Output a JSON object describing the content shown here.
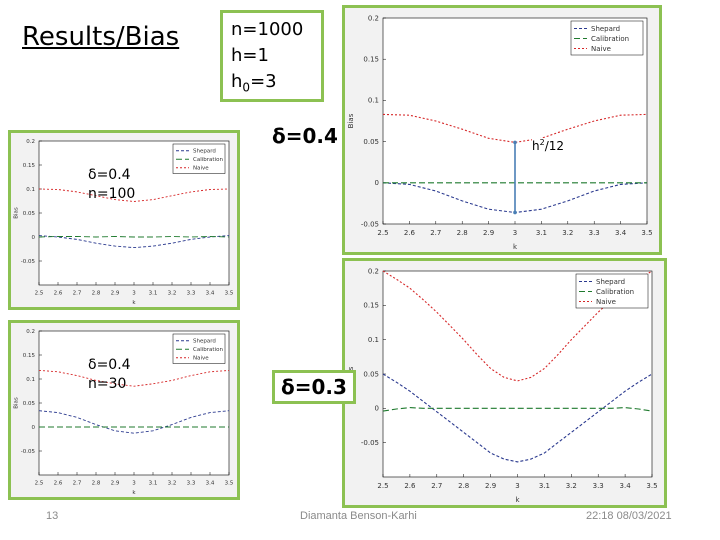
{
  "slide": {
    "title": "Results/Bias",
    "params": {
      "n": "n=1000",
      "h": "h=1",
      "h0_prefix": "h",
      "h0_sub": "0",
      "h0_suffix": "=3"
    },
    "delta_main": "δ=0.4",
    "delta_bottom": "δ=0.3",
    "small1": {
      "delta": "δ=0.4",
      "n": "n=100"
    },
    "small2": {
      "delta": "δ=0.4",
      "n": "n=30"
    },
    "annotation": {
      "base": "h",
      "sup": "2",
      "rest": "/12"
    },
    "footer": {
      "page": "13",
      "author": "Diamanta Benson-Karhi",
      "datetime": "22:18 08/03/2021"
    }
  },
  "colors": {
    "shepard": "#2b3a8f",
    "calibration": "#1f7a2e",
    "naive": "#d62728",
    "frame": "#8cc152",
    "arrow": "#4a7fb5"
  },
  "chart_data": [
    {
      "type": "line",
      "ylabel": "Bias",
      "xlabel": "k",
      "xlim": [
        2.5,
        3.5
      ],
      "ylim": [
        -0.05,
        0.2
      ],
      "xticks": [
        "2.5",
        "2.6",
        "2.7",
        "2.8",
        "2.9",
        "3",
        "3.1",
        "3.2",
        "3.3",
        "3.4",
        "3.5"
      ],
      "yticks": [
        "-0.05",
        "0",
        "0.05",
        "0.1",
        "0.15",
        "0.2"
      ],
      "legend": [
        "Shepard",
        "Calibration",
        "Naive"
      ],
      "legend_position": "top-right",
      "series": [
        {
          "name": "Shepard",
          "x": [
            2.5,
            2.6,
            2.7,
            2.8,
            2.9,
            3.0,
            3.1,
            3.2,
            3.3,
            3.4,
            3.5
          ],
          "values": [
            0.0,
            -0.002,
            -0.01,
            -0.022,
            -0.032,
            -0.036,
            -0.032,
            -0.022,
            -0.01,
            -0.002,
            0.0
          ]
        },
        {
          "name": "Calibration",
          "x": [
            2.5,
            2.6,
            2.7,
            2.8,
            2.9,
            3.0,
            3.1,
            3.2,
            3.3,
            3.4,
            3.5
          ],
          "values": [
            0.0,
            0.0,
            0.0,
            0.0,
            0.0,
            0.0,
            0.0,
            0.0,
            0.0,
            0.0,
            0.0
          ]
        },
        {
          "name": "Naive",
          "x": [
            2.5,
            2.6,
            2.7,
            2.8,
            2.9,
            3.0,
            3.1,
            3.2,
            3.3,
            3.4,
            3.5
          ],
          "values": [
            0.083,
            0.082,
            0.075,
            0.065,
            0.054,
            0.049,
            0.054,
            0.065,
            0.075,
            0.082,
            0.083
          ]
        }
      ]
    },
    {
      "type": "line",
      "ylabel": "Bias",
      "xlabel": "k",
      "xlim": [
        2.5,
        3.5
      ],
      "ylim": [
        -0.1,
        0.2
      ],
      "xticks": [
        "2.5",
        "2.6",
        "2.7",
        "2.8",
        "2.9",
        "3",
        "3.1",
        "3.2",
        "3.3",
        "3.4",
        "3.5"
      ],
      "yticks": [
        "-0.05",
        "0",
        "0.05",
        "0.1",
        "0.15",
        "0.2"
      ],
      "legend": [
        "Shepard",
        "Calibration",
        "Naive"
      ],
      "legend_position": "top-right",
      "series": [
        {
          "name": "Shepard",
          "x": [
            2.5,
            2.6,
            2.7,
            2.8,
            2.9,
            3.0,
            3.1,
            3.2,
            3.3,
            3.4,
            3.5
          ],
          "values": [
            0.003,
            0.0,
            -0.005,
            -0.013,
            -0.019,
            -0.022,
            -0.019,
            -0.013,
            -0.005,
            0.0,
            0.003
          ]
        },
        {
          "name": "Calibration",
          "x": [
            2.5,
            2.6,
            2.7,
            2.8,
            2.9,
            3.0,
            3.1,
            3.2,
            3.3,
            3.4,
            3.5
          ],
          "values": [
            0.0,
            0.001,
            0.001,
            0.0,
            0.001,
            0.0,
            0.0,
            0.001,
            0.0,
            0.001,
            0.0
          ]
        },
        {
          "name": "Naive",
          "x": [
            2.5,
            2.6,
            2.7,
            2.8,
            2.9,
            3.0,
            3.1,
            3.2,
            3.3,
            3.4,
            3.5
          ],
          "values": [
            0.1,
            0.099,
            0.094,
            0.086,
            0.078,
            0.074,
            0.078,
            0.086,
            0.094,
            0.099,
            0.1
          ]
        }
      ]
    },
    {
      "type": "line",
      "ylabel": "Bias",
      "xlabel": "k",
      "xlim": [
        2.5,
        3.5
      ],
      "ylim": [
        -0.1,
        0.2
      ],
      "xticks": [
        "2.5",
        "2.6",
        "2.7",
        "2.8",
        "2.9",
        "3",
        "3.1",
        "3.2",
        "3.3",
        "3.4",
        "3.5"
      ],
      "yticks": [
        "-0.05",
        "0",
        "0.05",
        "0.1",
        "0.15",
        "0.2"
      ],
      "legend": [
        "Shepard",
        "Calibration",
        "Naive"
      ],
      "legend_position": "top-right",
      "series": [
        {
          "name": "Shepard",
          "x": [
            2.5,
            2.6,
            2.7,
            2.8,
            2.9,
            3.0,
            3.1,
            3.2,
            3.3,
            3.4,
            3.5
          ],
          "values": [
            0.034,
            0.03,
            0.02,
            0.005,
            -0.008,
            -0.013,
            -0.008,
            0.005,
            0.02,
            0.03,
            0.034
          ]
        },
        {
          "name": "Calibration",
          "x": [
            2.5,
            2.6,
            2.7,
            2.8,
            2.9,
            3.0,
            3.1,
            3.2,
            3.3,
            3.4,
            3.5
          ],
          "values": [
            0.0,
            0.0,
            0.0,
            0.0,
            0.0,
            0.0,
            0.0,
            0.0,
            0.0,
            0.0,
            0.0
          ]
        },
        {
          "name": "Naive",
          "x": [
            2.5,
            2.6,
            2.7,
            2.8,
            2.9,
            3.0,
            3.1,
            3.2,
            3.3,
            3.4,
            3.5
          ],
          "values": [
            0.118,
            0.115,
            0.107,
            0.097,
            0.09,
            0.085,
            0.09,
            0.097,
            0.107,
            0.115,
            0.118
          ]
        }
      ]
    },
    {
      "type": "line",
      "ylabel": "Bias",
      "xlabel": "k",
      "xlim": [
        2.5,
        3.5
      ],
      "ylim": [
        -0.1,
        0.2
      ],
      "xticks": [
        "2.5",
        "2.6",
        "2.7",
        "2.8",
        "2.9",
        "3",
        "3.1",
        "3.2",
        "3.3",
        "3.4",
        "3.5"
      ],
      "yticks": [
        "-0.05",
        "0",
        "0.05",
        "0.1",
        "0.15",
        "0.2"
      ],
      "legend": [
        "Shepard",
        "Calibration",
        "Naive"
      ],
      "legend_position": "top-right",
      "series": [
        {
          "name": "Shepard",
          "x": [
            2.5,
            2.55,
            2.6,
            2.65,
            2.7,
            2.75,
            2.8,
            2.85,
            2.9,
            2.95,
            3.0,
            3.05,
            3.1,
            3.15,
            3.2,
            3.25,
            3.3,
            3.35,
            3.4,
            3.45,
            3.5
          ],
          "values": [
            0.05,
            0.038,
            0.025,
            0.01,
            -0.005,
            -0.02,
            -0.035,
            -0.05,
            -0.065,
            -0.074,
            -0.078,
            -0.074,
            -0.065,
            -0.05,
            -0.035,
            -0.02,
            -0.005,
            0.01,
            0.025,
            0.038,
            0.05
          ]
        },
        {
          "name": "Calibration",
          "x": [
            2.5,
            2.55,
            2.6,
            2.65,
            2.7,
            2.75,
            2.8,
            2.85,
            2.9,
            2.95,
            3.0,
            3.05,
            3.1,
            3.15,
            3.2,
            3.25,
            3.3,
            3.35,
            3.4,
            3.45,
            3.5
          ],
          "values": [
            -0.004,
            -0.001,
            0.001,
            0.0,
            0.0,
            0.0,
            0.0,
            0.0,
            0.0,
            0.0,
            0.0,
            0.0,
            0.0,
            0.0,
            0.0,
            0.0,
            0.0,
            0.0,
            0.001,
            -0.001,
            -0.004
          ]
        },
        {
          "name": "Naive",
          "x": [
            2.5,
            2.55,
            2.6,
            2.65,
            2.7,
            2.75,
            2.8,
            2.85,
            2.9,
            2.95,
            3.0,
            3.05,
            3.1,
            3.15,
            3.2,
            3.25,
            3.3,
            3.35,
            3.4,
            3.45,
            3.5
          ],
          "values": [
            0.2,
            0.188,
            0.175,
            0.158,
            0.14,
            0.12,
            0.1,
            0.078,
            0.058,
            0.045,
            0.04,
            0.045,
            0.058,
            0.078,
            0.1,
            0.12,
            0.14,
            0.158,
            0.175,
            0.188,
            0.2
          ]
        }
      ]
    }
  ]
}
